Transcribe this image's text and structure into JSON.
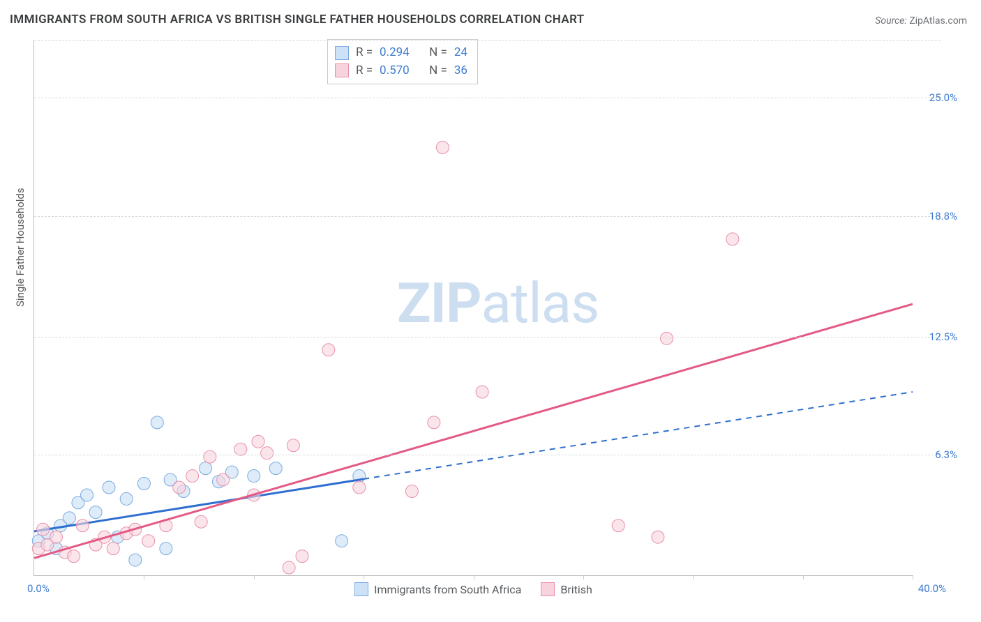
{
  "title": "IMMIGRANTS FROM SOUTH AFRICA VS BRITISH SINGLE FATHER HOUSEHOLDS CORRELATION CHART",
  "source_label": "Source:",
  "source_value": "ZipAtlas.com",
  "ylabel": "Single Father Households",
  "watermark_a": "ZIP",
  "watermark_b": "atlas",
  "chart": {
    "type": "scatter",
    "background_color": "#ffffff",
    "grid_color": "#d7d9dc",
    "axis_color": "#b9bcc0",
    "tick_label_color": "#3f7ccf",
    "axis_label_color": "#56595c",
    "xlim": [
      0,
      40
    ],
    "ylim": [
      0,
      28
    ],
    "x_start_label": "0.0%",
    "x_end_label": "40.0%",
    "yticks": [
      {
        "v": 6.3,
        "label": "6.3%"
      },
      {
        "v": 12.5,
        "label": "12.5%"
      },
      {
        "v": 18.8,
        "label": "18.8%"
      },
      {
        "v": 25.0,
        "label": "25.0%"
      }
    ],
    "xticks_minor": [
      5,
      10,
      15,
      20,
      25,
      30,
      35,
      40
    ],
    "series": [
      {
        "name": "Immigrants from South Africa",
        "fill": "#cde2f6",
        "stroke": "#7aa9e0",
        "line_color": "#2f6fd0",
        "line_dash_after_x": 15.0,
        "marker_r": 9,
        "marker_opacity": 0.65,
        "R_label": "R =",
        "R": "0.294",
        "N_label": "N =",
        "N": "24",
        "trend": {
          "x1": 0.0,
          "y1": 2.3,
          "x2": 40.0,
          "y2": 9.6
        },
        "points": [
          [
            0.2,
            1.8
          ],
          [
            0.6,
            2.2
          ],
          [
            1.0,
            1.4
          ],
          [
            1.2,
            2.6
          ],
          [
            1.6,
            3.0
          ],
          [
            2.0,
            3.8
          ],
          [
            2.4,
            4.2
          ],
          [
            2.8,
            3.3
          ],
          [
            3.4,
            4.6
          ],
          [
            3.8,
            2.0
          ],
          [
            4.2,
            4.0
          ],
          [
            4.6,
            0.8
          ],
          [
            5.0,
            4.8
          ],
          [
            5.6,
            8.0
          ],
          [
            6.2,
            5.0
          ],
          [
            6.8,
            4.4
          ],
          [
            7.8,
            5.6
          ],
          [
            8.4,
            4.9
          ],
          [
            9.0,
            5.4
          ],
          [
            10.0,
            5.2
          ],
          [
            11.0,
            5.6
          ],
          [
            14.0,
            1.8
          ],
          [
            14.8,
            5.2
          ],
          [
            6.0,
            1.4
          ]
        ]
      },
      {
        "name": "British",
        "fill": "#f7d3de",
        "stroke": "#e890aa",
        "line_color": "#e35a84",
        "line_dash_after_x": 40.0,
        "marker_r": 9,
        "marker_opacity": 0.6,
        "R_label": "R =",
        "R": "0.570",
        "N_label": "N =",
        "N": "36",
        "trend": {
          "x1": 0.0,
          "y1": 0.9,
          "x2": 40.0,
          "y2": 14.2
        },
        "points": [
          [
            0.2,
            1.4
          ],
          [
            0.4,
            2.4
          ],
          [
            0.6,
            1.6
          ],
          [
            1.0,
            2.0
          ],
          [
            1.4,
            1.2
          ],
          [
            1.8,
            1.0
          ],
          [
            2.2,
            2.6
          ],
          [
            2.8,
            1.6
          ],
          [
            3.2,
            2.0
          ],
          [
            3.6,
            1.4
          ],
          [
            4.2,
            2.2
          ],
          [
            4.6,
            2.4
          ],
          [
            5.2,
            1.8
          ],
          [
            6.0,
            2.6
          ],
          [
            6.6,
            4.6
          ],
          [
            7.2,
            5.2
          ],
          [
            7.6,
            2.8
          ],
          [
            8.0,
            6.2
          ],
          [
            8.6,
            5.0
          ],
          [
            9.4,
            6.6
          ],
          [
            10.0,
            4.2
          ],
          [
            10.2,
            7.0
          ],
          [
            10.6,
            6.4
          ],
          [
            11.8,
            6.8
          ],
          [
            12.2,
            1.0
          ],
          [
            13.4,
            11.8
          ],
          [
            14.8,
            4.6
          ],
          [
            17.2,
            4.4
          ],
          [
            18.2,
            8.0
          ],
          [
            18.6,
            22.4
          ],
          [
            20.4,
            9.6
          ],
          [
            26.6,
            2.6
          ],
          [
            28.4,
            2.0
          ],
          [
            28.8,
            12.4
          ],
          [
            31.8,
            17.6
          ],
          [
            11.6,
            0.4
          ]
        ]
      }
    ]
  }
}
